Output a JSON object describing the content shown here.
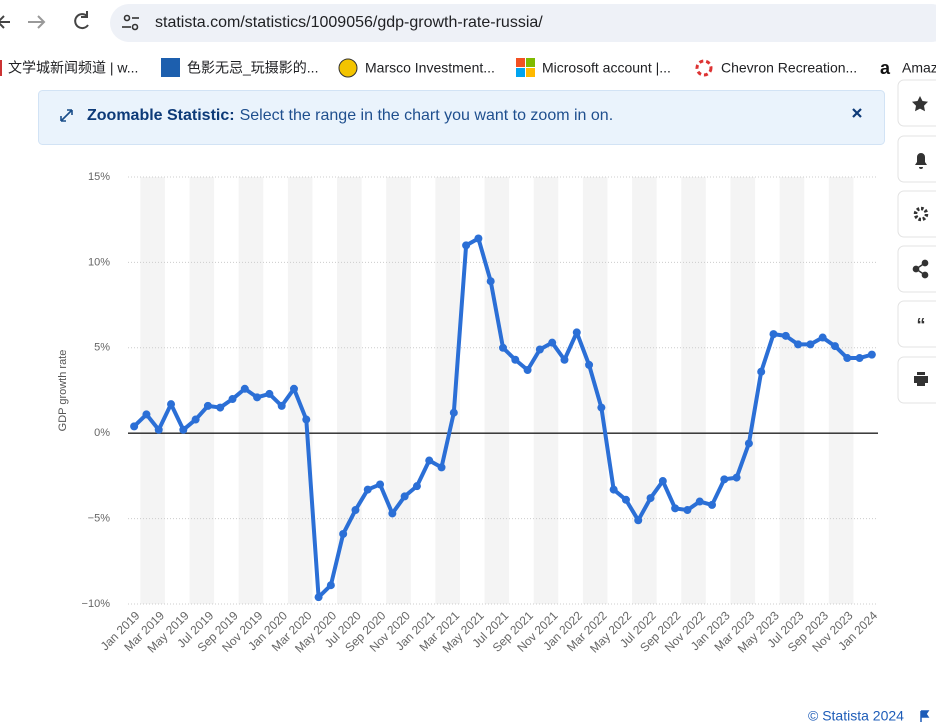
{
  "browser": {
    "url": "statista.com/statistics/1009056/gdp-growth-rate-russia/",
    "bookmarks": [
      "文学城新闻频道 | w...",
      "色影无忌_玩摄影的...",
      "Marsco Investment...",
      "Microsoft account |...",
      "Chevron Recreation...",
      "Amaz"
    ]
  },
  "banner": {
    "title": "Zoomable Statistic:",
    "text": "Select the range in the chart you want to zoom in on."
  },
  "footer": {
    "credit": "© Statista 2024"
  },
  "chart_data": {
    "type": "line",
    "y_label": "GDP growth rate",
    "categories": [
      "Jan 2019",
      null,
      "Mar 2019",
      null,
      "May 2019",
      null,
      "Jul 2019",
      null,
      "Sep 2019",
      null,
      "Nov 2019",
      null,
      "Jan 2020",
      null,
      "Mar 2020",
      null,
      "May 2020",
      null,
      "Jul 2020",
      null,
      "Sep 2020",
      null,
      "Nov 2020",
      null,
      "Jan 2021",
      null,
      "Mar 2021",
      null,
      "May 2021",
      null,
      "Jul 2021",
      null,
      "Sep 2021",
      null,
      "Nov 2021",
      null,
      "Jan 2022",
      null,
      "Mar 2022",
      null,
      "May 2022",
      null,
      "Jul 2022",
      null,
      "Sep 2022",
      null,
      "Nov 2022",
      null,
      "Jan 2023",
      null,
      "Mar 2023",
      null,
      "May 2023",
      null,
      "Jul 2023",
      null,
      "Sep 2023",
      null,
      "Nov 2023",
      null,
      "Jan 2024"
    ],
    "series": [
      {
        "name": "GDP growth rate",
        "color": "#2b6fd6",
        "values": [
          0.4,
          1.1,
          0.2,
          1.7,
          0.2,
          0.8,
          1.6,
          1.5,
          2.0,
          2.6,
          2.1,
          2.3,
          1.6,
          2.6,
          0.8,
          -9.6,
          -8.9,
          -5.9,
          -4.5,
          -3.3,
          -3.0,
          -4.7,
          -3.7,
          -3.1,
          -1.6,
          -2.0,
          1.2,
          11.0,
          11.4,
          8.9,
          5.0,
          4.3,
          3.7,
          4.9,
          5.3,
          4.3,
          5.9,
          4.0,
          1.5,
          -3.3,
          -3.9,
          -5.1,
          -3.8,
          -2.8,
          -4.4,
          -4.5,
          -4.0,
          -4.2,
          -2.7,
          -2.6,
          -0.6,
          3.6,
          5.8,
          5.7,
          5.2,
          5.2,
          5.6,
          5.1,
          4.4,
          4.4,
          4.6
        ]
      }
    ],
    "ylim": [
      -10,
      15
    ],
    "yticks": [
      {
        "value": -10,
        "label": "−10%"
      },
      {
        "value": -5,
        "label": "−5%"
      },
      {
        "value": 0,
        "label": "0%"
      },
      {
        "value": 5,
        "label": "5%"
      },
      {
        "value": 10,
        "label": "10%"
      },
      {
        "value": 15,
        "label": "15%"
      }
    ],
    "grid": true
  }
}
